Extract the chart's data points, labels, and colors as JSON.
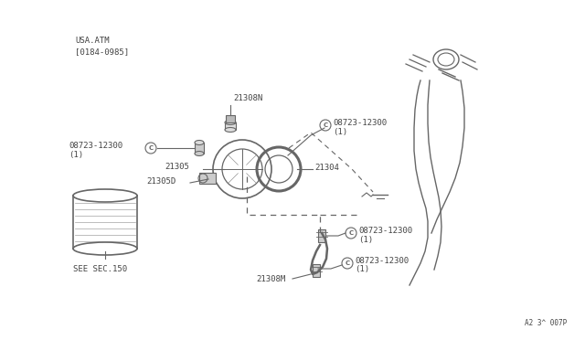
{
  "bg_color": "#f5f5f5",
  "line_color": "#666666",
  "text_color": "#444444",
  "title_text": "A2 3^ 007P",
  "usa_atm_label": "USA.ATM\n[0184-0985]",
  "see_sec": "SEE SEC.150",
  "figsize": [
    6.4,
    3.72
  ],
  "dpi": 100
}
